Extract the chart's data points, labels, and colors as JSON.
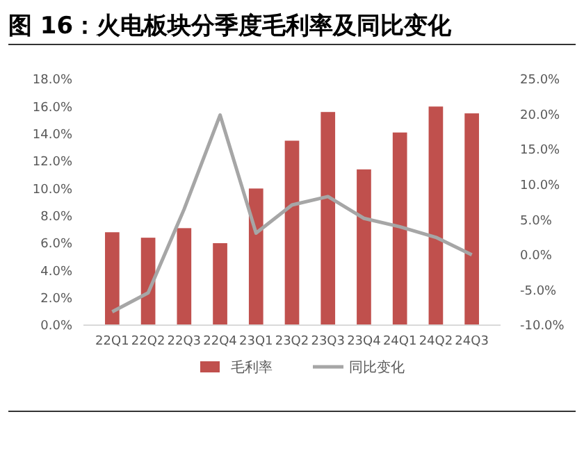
{
  "chart_data": {
    "type": "bar",
    "title": "图 16：火电板块分季度毛利率及同比变化",
    "categories": [
      "22Q1",
      "22Q2",
      "22Q3",
      "22Q4",
      "23Q1",
      "23Q2",
      "23Q3",
      "23Q4",
      "24Q1",
      "24Q2",
      "24Q3"
    ],
    "series": [
      {
        "name": "毛利率",
        "color": "#c0504d",
        "values": [
          6.8,
          6.4,
          7.1,
          6.0,
          10.0,
          13.5,
          15.6,
          11.4,
          14.1,
          16.0,
          15.5
        ]
      },
      {
        "name": "同比变化",
        "type": "line",
        "axis": "y2",
        "color": "#a6a6a6",
        "values": [
          -8.1,
          -5.4,
          6.5,
          19.9,
          3.1,
          7.1,
          8.3,
          5.2,
          4.0,
          2.5,
          0.0
        ]
      }
    ],
    "ylim": [
      0,
      18
    ],
    "yticks": [
      {
        "value": 0,
        "label": "0.0%"
      },
      {
        "value": 2,
        "label": "2.0%"
      },
      {
        "value": 4,
        "label": "4.0%"
      },
      {
        "value": 6,
        "label": "6.0%"
      },
      {
        "value": 8,
        "label": "8.0%"
      },
      {
        "value": 10,
        "label": "10.0%"
      },
      {
        "value": 12,
        "label": "12.0%"
      },
      {
        "value": 14,
        "label": "14.0%"
      },
      {
        "value": 16,
        "label": "16.0%"
      },
      {
        "value": 18,
        "label": "18.0%"
      }
    ],
    "y2lim": [
      -10,
      25
    ],
    "y2ticks": [
      {
        "value": -10,
        "label": "-10.0%"
      },
      {
        "value": -5,
        "label": "-5.0%"
      },
      {
        "value": 0,
        "label": "0.0%"
      },
      {
        "value": 5,
        "label": "5.0%"
      },
      {
        "value": 10,
        "label": "10.0%"
      },
      {
        "value": 15,
        "label": "15.0%"
      },
      {
        "value": 20,
        "label": "20.0%"
      },
      {
        "value": 25,
        "label": "25.0%"
      }
    ],
    "legend": "bottom",
    "marker": "none"
  }
}
